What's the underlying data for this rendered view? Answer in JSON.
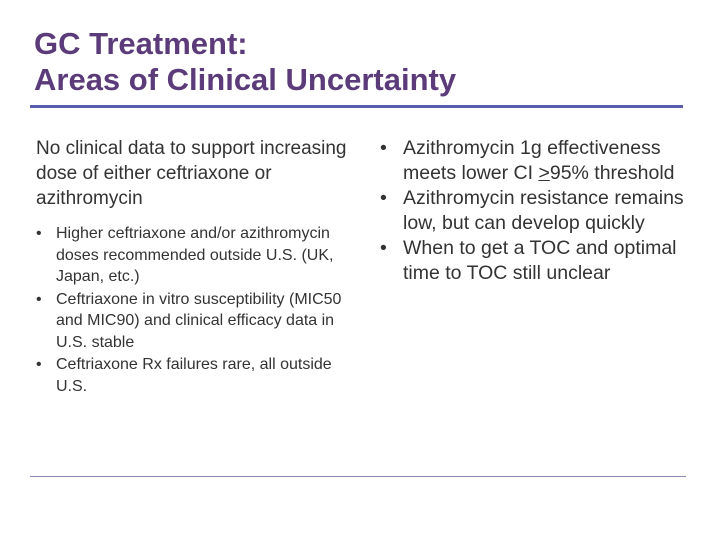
{
  "slide": {
    "title_line1": "GC Treatment:",
    "title_line2": "Areas of Clinical Uncertainty"
  },
  "left": {
    "intro": "No clinical data to support increasing dose of either ceftriaxone or azithromycin",
    "bullet_char": "•",
    "bullets": [
      "Higher ceftriaxone and/or azithromycin doses recommended outside U.S. (UK, Japan, etc.)",
      "Ceftriaxone in vitro susceptibility (MIC50 and MIC90) and clinical efficacy data in U.S. stable",
      "Ceftriaxone Rx failures rare, all outside U.S."
    ]
  },
  "right": {
    "bullet_char": "•",
    "b1_pre": "Azithromycin 1g effectiveness meets lower CI ",
    "b1_symbol": ">",
    "b1_post": "95% threshold",
    "b2": "Azithromycin resistance remains low, but can develop quickly",
    "b3": "When to get a TOC and optimal time to TOC still unclear"
  }
}
